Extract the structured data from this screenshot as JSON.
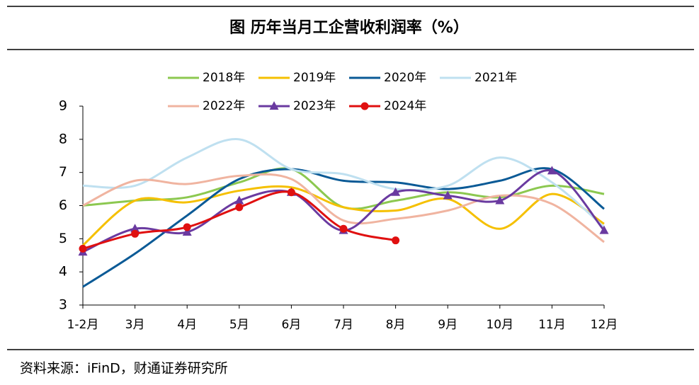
{
  "chart_data": {
    "type": "line",
    "title": "图  历年当月工企营收利润率（%）",
    "source": "资料来源：iFinD，财通证券研究所",
    "categories": [
      "1-2月",
      "3月",
      "4月",
      "5月",
      "6月",
      "7月",
      "8月",
      "9月",
      "10月",
      "11月",
      "12月"
    ],
    "ylim": [
      3,
      9
    ],
    "yticks": [
      3,
      4,
      5,
      6,
      7,
      8,
      9
    ],
    "smooth": true,
    "series": [
      {
        "name": "2018年",
        "color": "#8cc850",
        "values": [
          6.0,
          6.15,
          6.25,
          6.7,
          7.1,
          5.95,
          6.15,
          6.4,
          6.25,
          6.6,
          6.35
        ]
      },
      {
        "name": "2019年",
        "color": "#f5c000",
        "values": [
          4.8,
          6.15,
          6.1,
          6.45,
          6.55,
          5.95,
          5.85,
          6.2,
          5.3,
          6.35,
          5.45
        ]
      },
      {
        "name": "2020年",
        "color": "#0a5a96",
        "values": [
          3.55,
          4.55,
          5.7,
          6.8,
          7.1,
          6.75,
          6.7,
          6.5,
          6.75,
          7.1,
          5.9
        ]
      },
      {
        "name": "2021年",
        "color": "#bfe0f0",
        "values": [
          6.6,
          6.6,
          7.45,
          8.0,
          7.1,
          6.95,
          6.5,
          6.6,
          7.45,
          6.7,
          5.35
        ]
      },
      {
        "name": "2022年",
        "color": "#f0b4a0",
        "values": [
          6.0,
          6.75,
          6.65,
          6.9,
          6.8,
          5.55,
          5.6,
          5.85,
          6.3,
          6.05,
          4.9
        ]
      },
      {
        "name": "2023年",
        "color": "#6a3aa0",
        "marker": "triangle",
        "values": [
          4.6,
          5.3,
          5.2,
          6.15,
          6.4,
          5.25,
          6.4,
          6.3,
          6.15,
          7.05,
          5.25
        ]
      },
      {
        "name": "2024年",
        "color": "#e01010",
        "marker": "circle",
        "values": [
          4.7,
          5.15,
          5.35,
          5.95,
          6.4,
          5.3,
          4.95,
          null,
          null,
          null,
          null
        ]
      }
    ]
  }
}
